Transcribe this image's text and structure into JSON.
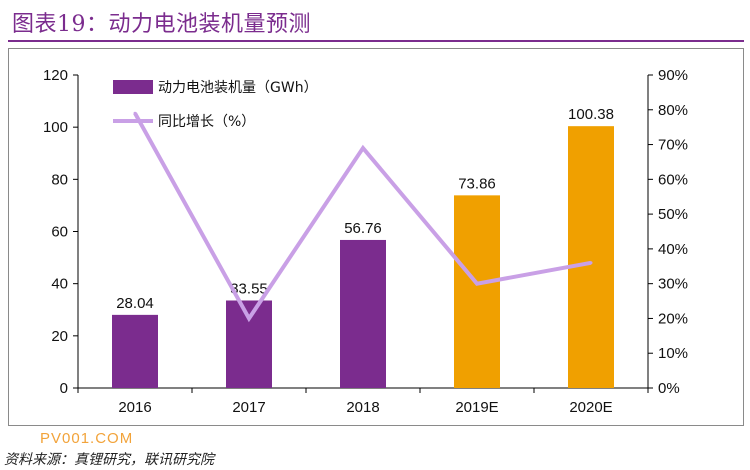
{
  "header": {
    "title": "图表19：动力电池装机量预测"
  },
  "chart_data": {
    "type": "bar",
    "categories": [
      "2016",
      "2017",
      "2018",
      "2019E",
      "2020E"
    ],
    "series": [
      {
        "name": "动力电池装机量（GWh）",
        "type": "bar",
        "axis": "left",
        "values": [
          28.04,
          33.55,
          56.76,
          73.86,
          100.38
        ],
        "labels": [
          "28.04",
          "33.55",
          "56.76",
          "73.86",
          "100.38"
        ],
        "colors": [
          "#7B2C8E",
          "#7B2C8E",
          "#7B2C8E",
          "#F0A000",
          "#F0A000"
        ]
      },
      {
        "name": "同比增长（%）",
        "type": "line",
        "axis": "right",
        "values": [
          79,
          20,
          69,
          30,
          36
        ],
        "color": "#C9A0E6"
      }
    ],
    "y_left": {
      "ticks": [
        "0",
        "20",
        "40",
        "60",
        "80",
        "100",
        "120"
      ],
      "min": 0,
      "max": 120
    },
    "y_right": {
      "ticks": [
        "0%",
        "10%",
        "20%",
        "30%",
        "40%",
        "50%",
        "60%",
        "70%",
        "80%",
        "90%"
      ],
      "min": 0,
      "max": 90
    },
    "legend_position": "top-left",
    "grid": false
  },
  "watermark": "PV001.COM",
  "source": "资料来源：真锂研究，联讯研究院"
}
